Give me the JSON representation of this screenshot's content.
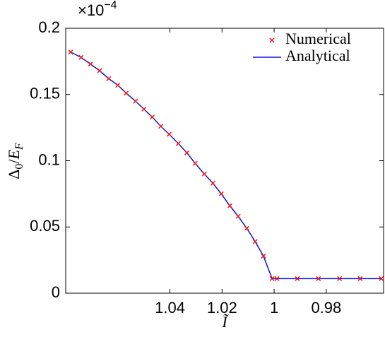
{
  "chart_data": {
    "type": "line",
    "xlabel": "Ĩ",
    "ylabel_parts": [
      "Δ",
      "0",
      "/",
      "E",
      "F"
    ],
    "y_scale_label": {
      "base": "×10",
      "exponent": "−4"
    },
    "x": [
      1.0781,
      1.0741,
      1.0705,
      1.067,
      1.0635,
      1.06,
      1.0568,
      1.0532,
      1.05,
      1.0468,
      1.0435,
      1.0403,
      1.0368,
      1.0335,
      1.0303,
      1.0268,
      1.0235,
      1.0203,
      1.017,
      1.0138,
      1.0105,
      1.0073,
      1.0041,
      1.0008,
      0.9989,
      0.9911,
      0.983,
      0.9749,
      0.967,
      0.9589
    ],
    "series": [
      {
        "name": "Numerical",
        "color": "#e8141c",
        "marker": "x",
        "values": [
          0.182,
          0.178,
          0.173,
          0.168,
          0.162,
          0.157,
          0.151,
          0.145,
          0.139,
          0.133,
          0.126,
          0.12,
          0.113,
          0.106,
          0.098,
          0.09,
          0.083,
          0.075,
          0.066,
          0.058,
          0.049,
          0.039,
          0.028,
          0.011,
          0.011,
          0.011,
          0.011,
          0.011,
          0.011,
          0.011
        ]
      },
      {
        "name": "Analytical",
        "color": "#1010e0",
        "marker": "line",
        "values": [
          0.182,
          0.178,
          0.173,
          0.168,
          0.162,
          0.157,
          0.151,
          0.145,
          0.139,
          0.133,
          0.126,
          0.12,
          0.113,
          0.106,
          0.098,
          0.09,
          0.083,
          0.075,
          0.066,
          0.058,
          0.049,
          0.039,
          0.028,
          0.011,
          0.011,
          0.011,
          0.011,
          0.011,
          0.011,
          0.011
        ]
      }
    ],
    "xlim": [
      1.08,
      0.958
    ],
    "xticks": [
      1.04,
      1.02,
      1,
      0.98
    ],
    "ylim": [
      0,
      0.2
    ],
    "yticks": [
      0,
      0.05,
      0.1,
      0.15,
      0.2
    ],
    "legend": "upper right"
  }
}
